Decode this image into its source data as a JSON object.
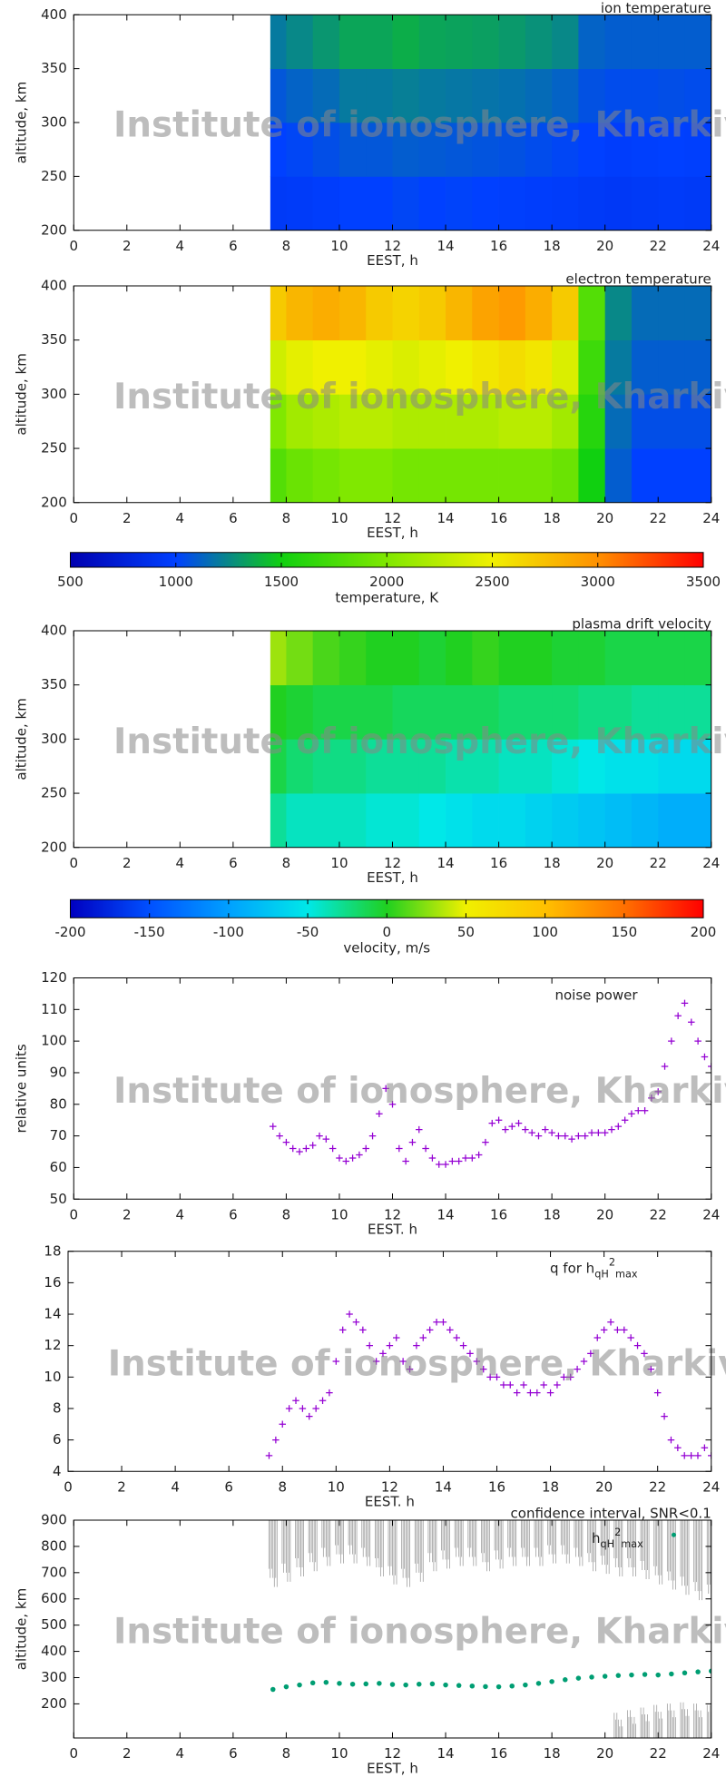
{
  "chart_data": [
    {
      "type": "heatmap",
      "title": "ion temperature",
      "xlabel": "EEST, h",
      "ylabel": "altitude, km",
      "watermark": "Institute of ionosphere, Kharkiv",
      "xlim": [
        0,
        24
      ],
      "xticks": [
        0,
        2,
        4,
        6,
        8,
        10,
        12,
        14,
        16,
        18,
        20,
        22,
        24
      ],
      "ylim": [
        200,
        400
      ],
      "yticks": [
        200,
        250,
        300,
        350,
        400
      ],
      "x_edges": [
        7.4,
        8,
        9,
        10,
        11,
        12,
        13,
        14,
        15,
        16,
        17,
        18,
        19,
        20,
        21,
        22,
        23,
        24
      ],
      "y_edges": [
        200,
        250,
        300,
        350,
        400
      ],
      "values": [
        [
          950,
          960,
          980,
          1000,
          1000,
          1020,
          1000,
          1010,
          1000,
          990,
          980,
          970,
          950,
          940,
          950,
          960,
          950
        ],
        [
          1000,
          1020,
          1050,
          1080,
          1080,
          1100,
          1090,
          1080,
          1070,
          1060,
          1040,
          1020,
          1000,
          980,
          990,
          1000,
          990
        ],
        [
          1080,
          1120,
          1150,
          1200,
          1200,
          1220,
          1200,
          1190,
          1180,
          1170,
          1150,
          1120,
          1060,
          1040,
          1040,
          1050,
          1040
        ],
        [
          1200,
          1250,
          1300,
          1350,
          1350,
          1380,
          1350,
          1340,
          1330,
          1310,
          1280,
          1250,
          1120,
          1100,
          1100,
          1100,
          1100
        ]
      ],
      "colorbar": 2
    },
    {
      "type": "heatmap",
      "title": "electron temperature",
      "xlabel": "EEST, h",
      "ylabel": "altitude, km",
      "watermark": "Institute of ionosphere, Kharkiv",
      "xlim": [
        0,
        24
      ],
      "xticks": [
        0,
        2,
        4,
        6,
        8,
        10,
        12,
        14,
        16,
        18,
        20,
        22,
        24
      ],
      "ylim": [
        200,
        400
      ],
      "yticks": [
        200,
        250,
        300,
        350,
        400
      ],
      "x_edges": [
        7.4,
        8,
        9,
        10,
        11,
        12,
        13,
        14,
        15,
        16,
        17,
        18,
        19,
        20,
        21,
        22,
        23,
        24
      ],
      "y_edges": [
        200,
        250,
        300,
        350,
        400
      ],
      "values": [
        [
          1800,
          1900,
          1950,
          2000,
          2000,
          1950,
          1950,
          1950,
          1950,
          1950,
          1950,
          1900,
          1500,
          1100,
          1000,
          1000,
          1000
        ],
        [
          2000,
          2150,
          2200,
          2250,
          2250,
          2200,
          2200,
          2200,
          2200,
          2250,
          2250,
          2150,
          1600,
          1150,
          1050,
          1050,
          1050
        ],
        [
          2350,
          2450,
          2500,
          2500,
          2450,
          2400,
          2450,
          2500,
          2550,
          2600,
          2550,
          2400,
          1700,
          1200,
          1100,
          1100,
          1100
        ],
        [
          2700,
          2800,
          2850,
          2800,
          2700,
          2650,
          2700,
          2800,
          2900,
          2950,
          2850,
          2700,
          1800,
          1250,
          1150,
          1150,
          1150
        ]
      ],
      "colorbar": 2
    },
    {
      "type": "colorbar",
      "label": "temperature, K",
      "clim": [
        500,
        3500
      ],
      "ticks": [
        500,
        1000,
        1500,
        2000,
        2500,
        3000,
        3500
      ],
      "colors": [
        "#0000b0",
        "#0040ff",
        "#10d010",
        "#80e800",
        "#f0f000",
        "#ff9000",
        "#ff0000"
      ]
    },
    {
      "type": "heatmap",
      "title": "plasma drift velocity",
      "xlabel": "EEST, h",
      "ylabel": "altitude, km",
      "watermark": "Institute of ionosphere, Kharkiv",
      "xlim": [
        0,
        24
      ],
      "xticks": [
        0,
        2,
        4,
        6,
        8,
        10,
        12,
        14,
        16,
        18,
        20,
        22,
        24
      ],
      "ylim": [
        200,
        400
      ],
      "yticks": [
        200,
        250,
        300,
        350,
        400
      ],
      "x_edges": [
        7.4,
        8,
        9,
        10,
        11,
        12,
        13,
        14,
        15,
        16,
        17,
        18,
        19,
        20,
        21,
        22,
        23,
        24
      ],
      "y_edges": [
        200,
        250,
        300,
        350,
        400
      ],
      "values": [
        [
          -30,
          -40,
          -40,
          -40,
          -45,
          -45,
          -50,
          -55,
          -60,
          -60,
          -65,
          -70,
          -75,
          -80,
          -85,
          -90,
          -90
        ],
        [
          -10,
          -20,
          -25,
          -25,
          -30,
          -30,
          -30,
          -35,
          -35,
          -40,
          -40,
          -45,
          -50,
          -55,
          -55,
          -60,
          -60
        ],
        [
          0,
          -5,
          -10,
          -10,
          -10,
          -15,
          -15,
          -15,
          -15,
          -20,
          -20,
          -20,
          -25,
          -25,
          -30,
          -30,
          -30
        ],
        [
          30,
          20,
          10,
          5,
          0,
          0,
          -5,
          0,
          5,
          0,
          0,
          -5,
          -5,
          -10,
          -10,
          -10,
          -10
        ]
      ],
      "colorbar": 4
    },
    {
      "type": "colorbar",
      "label": "velocity, m/s",
      "clim": [
        -200,
        200
      ],
      "ticks": [
        -200,
        -150,
        -100,
        -50,
        0,
        50,
        100,
        150,
        200
      ],
      "colors": [
        "#0000c0",
        "#0050ff",
        "#00a0ff",
        "#00e8e8",
        "#20d020",
        "#f0f000",
        "#ffc000",
        "#ff7000",
        "#ff0000"
      ]
    },
    {
      "type": "scatter",
      "title": "noise power",
      "xlabel": "EEST. h",
      "ylabel": "relative units",
      "watermark": "Institute of ionosphere, Kharkiv",
      "xlim": [
        0,
        24
      ],
      "xticks": [
        0,
        2,
        4,
        6,
        8,
        10,
        12,
        14,
        16,
        18,
        20,
        22,
        24
      ],
      "ylim": [
        50,
        120
      ],
      "yticks": [
        50,
        60,
        70,
        80,
        90,
        100,
        110,
        120
      ],
      "color": "#9400d3",
      "x": [
        7.5,
        7.75,
        8,
        8.25,
        8.5,
        8.75,
        9,
        9.25,
        9.5,
        9.75,
        10,
        10.25,
        10.5,
        10.75,
        11,
        11.25,
        11.5,
        11.75,
        12,
        12.25,
        12.5,
        12.75,
        13,
        13.25,
        13.5,
        13.75,
        14,
        14.25,
        14.5,
        14.75,
        15,
        15.25,
        15.5,
        15.75,
        16,
        16.25,
        16.5,
        16.75,
        17,
        17.25,
        17.5,
        17.75,
        18,
        18.25,
        18.5,
        18.75,
        19,
        19.25,
        19.5,
        19.75,
        20,
        20.25,
        20.5,
        20.75,
        21,
        21.25,
        21.5,
        21.75,
        22,
        22.25,
        22.5,
        22.75,
        23,
        23.25,
        23.5,
        23.75,
        24
      ],
      "values": [
        73,
        70,
        68,
        66,
        65,
        66,
        67,
        70,
        69,
        66,
        63,
        62,
        63,
        64,
        66,
        70,
        77,
        85,
        80,
        66,
        62,
        68,
        72,
        66,
        63,
        61,
        61,
        62,
        62,
        63,
        63,
        64,
        68,
        74,
        75,
        72,
        73,
        74,
        72,
        71,
        70,
        72,
        71,
        70,
        70,
        69,
        70,
        70,
        71,
        71,
        71,
        72,
        73,
        75,
        77,
        78,
        78,
        82,
        84,
        92,
        100,
        108,
        112,
        106,
        100,
        95,
        92
      ]
    },
    {
      "type": "scatter",
      "title": "q for h",
      "title_sub": "qH",
      "title_sup": "2",
      "title_sub2": "max",
      "xlabel": "EEST. h",
      "watermark": "Institute of ionosphere, Kharkiv",
      "xlim": [
        0,
        24
      ],
      "xticks": [
        0,
        2,
        4,
        6,
        8,
        10,
        12,
        14,
        16,
        18,
        20,
        22,
        24
      ],
      "ylim": [
        4,
        18
      ],
      "yticks": [
        4,
        6,
        8,
        10,
        12,
        14,
        16,
        18
      ],
      "color": "#9400d3",
      "x": [
        7.5,
        7.75,
        8,
        8.25,
        8.5,
        8.75,
        9,
        9.25,
        9.5,
        9.75,
        10,
        10.25,
        10.5,
        10.75,
        11,
        11.25,
        11.5,
        11.75,
        12,
        12.25,
        12.5,
        12.75,
        13,
        13.25,
        13.5,
        13.75,
        14,
        14.25,
        14.5,
        14.75,
        15,
        15.25,
        15.5,
        15.75,
        16,
        16.25,
        16.5,
        16.75,
        17,
        17.25,
        17.5,
        17.75,
        18,
        18.25,
        18.5,
        18.75,
        19,
        19.25,
        19.5,
        19.75,
        20,
        20.25,
        20.5,
        20.75,
        21,
        21.25,
        21.5,
        21.75,
        22,
        22.25,
        22.5,
        22.75,
        23,
        23.25,
        23.5,
        23.75,
        24
      ],
      "values": [
        5,
        6,
        7,
        8,
        8.5,
        8,
        7.5,
        8,
        8.5,
        9,
        11,
        13,
        14,
        13.5,
        13,
        12,
        11,
        11.5,
        12,
        12.5,
        11,
        10.5,
        12,
        12.5,
        13,
        13.5,
        13.5,
        13,
        12.5,
        12,
        11.5,
        11,
        10.5,
        10,
        10,
        9.5,
        9.5,
        9,
        9.5,
        9,
        9,
        9.5,
        9,
        9.5,
        10,
        10,
        10.5,
        11,
        11.5,
        12.5,
        13,
        13.5,
        13,
        13,
        12.5,
        12,
        11.5,
        10.5,
        9,
        7.5,
        6,
        5.5,
        5,
        5,
        5,
        5.5,
        5
      ]
    },
    {
      "type": "interval",
      "title": "confidence interval, SNR<0.1",
      "legend": {
        "label": "h",
        "sub": "qH",
        "sup": "2",
        "sub2": "max"
      },
      "xlabel": "EEST, h",
      "ylabel": "altitude, km",
      "watermark": "Institute of ionosphere, Kharkiv",
      "xlim": [
        0,
        24
      ],
      "xticks": [
        0,
        2,
        4,
        6,
        8,
        10,
        12,
        14,
        16,
        18,
        20,
        22,
        24
      ],
      "ylim": [
        70,
        900
      ],
      "yticks": [
        200,
        300,
        400,
        500,
        600,
        700,
        800,
        900
      ],
      "color": "#009e73",
      "interval_color": "#9a9a9a",
      "x": [
        7.5,
        8,
        8.5,
        9,
        9.5,
        10,
        10.5,
        11,
        11.5,
        12,
        12.5,
        13,
        13.5,
        14,
        14.5,
        15,
        15.5,
        16,
        16.5,
        17,
        17.5,
        18,
        18.5,
        19,
        19.5,
        20,
        20.5,
        21,
        21.5,
        22,
        22.5,
        23,
        23.5,
        24
      ],
      "values": [
        255,
        265,
        272,
        280,
        282,
        278,
        275,
        276,
        278,
        274,
        272,
        275,
        276,
        272,
        270,
        268,
        266,
        265,
        268,
        272,
        278,
        285,
        292,
        298,
        302,
        305,
        308,
        310,
        312,
        310,
        314,
        318,
        322,
        325
      ],
      "interval_lower": [
        680,
        700,
        720,
        740,
        760,
        770,
        770,
        760,
        720,
        690,
        680,
        700,
        740,
        750,
        760,
        760,
        740,
        750,
        760,
        760,
        760,
        770,
        770,
        760,
        740,
        730,
        720,
        720,
        710,
        690,
        670,
        650,
        630,
        620
      ],
      "x_low_band": [
        20.5,
        21,
        21.5,
        22,
        22.5,
        23,
        23.5,
        24
      ],
      "low_band_top": [
        140,
        150,
        160,
        170,
        175,
        180,
        175,
        170
      ]
    }
  ]
}
